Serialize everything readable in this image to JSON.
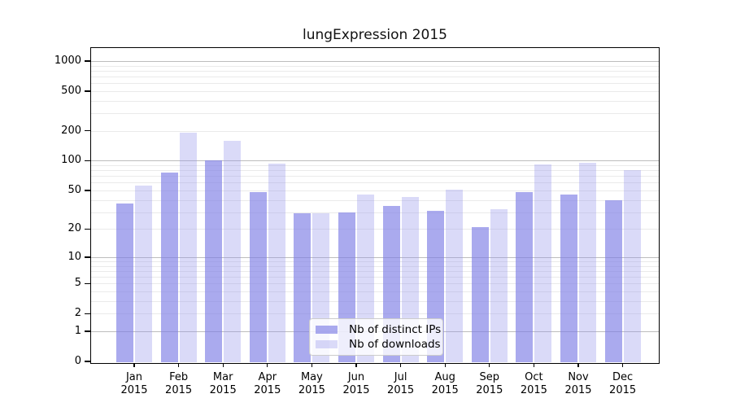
{
  "chart_data": {
    "type": "bar",
    "title": "lungExpression 2015",
    "categories": [
      "Jan",
      "Feb",
      "Mar",
      "Apr",
      "May",
      "Jun",
      "Jul",
      "Aug",
      "Sep",
      "Oct",
      "Nov",
      "Dec"
    ],
    "category_year": "2015",
    "series": [
      {
        "name": "Nb of distinct IPs",
        "color": "rgba(124,124,229,0.65)",
        "color_on_white": "#a9a9ef",
        "values": [
          37,
          76,
          100,
          48,
          29,
          30,
          35,
          31,
          21,
          48,
          45,
          40
        ]
      },
      {
        "name": "Nb of downloads",
        "color": "rgba(150,150,235,0.35)",
        "color_on_white": "#dadaf7",
        "values": [
          56,
          190,
          160,
          93,
          29,
          45,
          43,
          51,
          32,
          91,
          96,
          80
        ]
      }
    ],
    "xlabel": "",
    "ylabel": "",
    "yscale": "log1p",
    "yticks": [
      1000,
      500,
      200,
      100,
      50,
      20,
      10,
      5,
      2,
      1,
      0
    ],
    "grid": "horizontal",
    "grid_major_at": [
      1,
      10,
      100,
      1000
    ],
    "legend_position": "inside-bottom-center",
    "colors": {
      "grid_major": "#bdbdbd",
      "grid_minor": "#eaeaea",
      "axis": "#000000",
      "background": "#ffffff"
    }
  }
}
